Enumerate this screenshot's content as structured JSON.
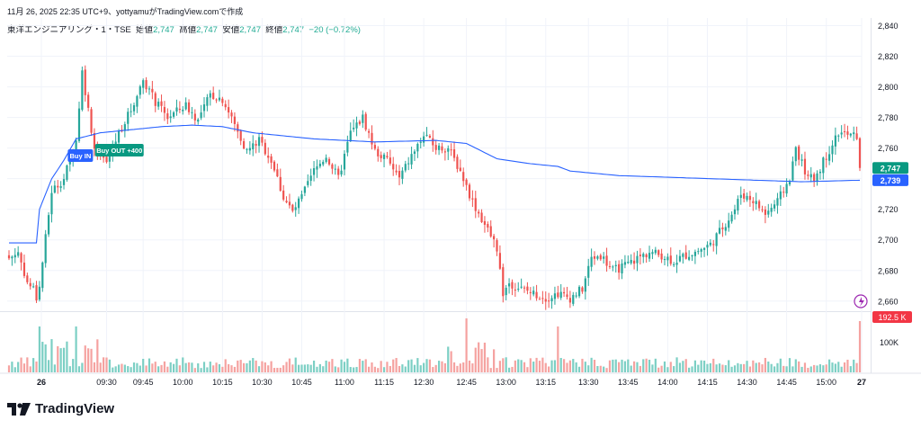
{
  "caption": "11月 26, 2025 22:35 UTC+9、yottyamuがTradingView.comで作成",
  "legend": {
    "symbol": "東洋エンジニアリング・1・TSE",
    "open_label": "始値",
    "open": "2,747",
    "high_label": "高値",
    "high": "2,747",
    "low_label": "安値",
    "low": "2,747",
    "close_label": "終値",
    "close": "2,747",
    "change": "−20 (−0.72%)"
  },
  "brand": "TradingView",
  "colors": {
    "up": "#26a69a",
    "down": "#ef5350",
    "vwap": "#2962ff",
    "up_vol": "#7ccfc4",
    "down_vol": "#f5a2a0"
  },
  "chart_data": {
    "type": "candlestick",
    "y_ticks": [
      "2,840",
      "2,820",
      "2,800",
      "2,780",
      "2,760",
      "2,740",
      "2,720",
      "2,700",
      "2,680",
      "2,660"
    ],
    "ylim": [
      2654,
      2845
    ],
    "x_ticks": [
      "26",
      "09:30",
      "09:45",
      "10:00",
      "10:15",
      "10:30",
      "10:45",
      "11:00",
      "11:15",
      "12:30",
      "12:45",
      "13:00",
      "13:15",
      "13:30",
      "13:45",
      "14:00",
      "14:15",
      "14:30",
      "14:45",
      "15:00",
      "27"
    ],
    "anchors": [
      [
        0,
        2688
      ],
      [
        3,
        2692
      ],
      [
        6,
        2672
      ],
      [
        8,
        2668
      ],
      [
        9,
        2662
      ],
      [
        10,
        2670
      ],
      [
        14,
        2732
      ],
      [
        18,
        2740
      ],
      [
        22,
        2765
      ],
      [
        24,
        2810
      ],
      [
        28,
        2760
      ],
      [
        32,
        2750
      ],
      [
        36,
        2770
      ],
      [
        40,
        2785
      ],
      [
        44,
        2805
      ],
      [
        48,
        2790
      ],
      [
        52,
        2780
      ],
      [
        58,
        2788
      ],
      [
        62,
        2778
      ],
      [
        66,
        2795
      ],
      [
        70,
        2792
      ],
      [
        74,
        2775
      ],
      [
        78,
        2758
      ],
      [
        82,
        2765
      ],
      [
        86,
        2752
      ],
      [
        90,
        2728
      ],
      [
        93,
        2718
      ],
      [
        96,
        2728
      ],
      [
        100,
        2745
      ],
      [
        104,
        2755
      ],
      [
        108,
        2740
      ],
      [
        112,
        2770
      ],
      [
        116,
        2780
      ],
      [
        120,
        2758
      ],
      [
        124,
        2752
      ],
      [
        128,
        2740
      ],
      [
        132,
        2755
      ],
      [
        136,
        2768
      ],
      [
        140,
        2760
      ],
      [
        144,
        2760
      ],
      [
        148,
        2745
      ],
      [
        152,
        2725
      ],
      [
        156,
        2710
      ],
      [
        160,
        2695
      ],
      [
        162,
        2665
      ],
      [
        164,
        2672
      ],
      [
        168,
        2668
      ],
      [
        172,
        2665
      ],
      [
        176,
        2662
      ],
      [
        180,
        2665
      ],
      [
        184,
        2662
      ],
      [
        188,
        2668
      ],
      [
        191,
        2688
      ],
      [
        194,
        2690
      ],
      [
        198,
        2680
      ],
      [
        202,
        2683
      ],
      [
        206,
        2688
      ],
      [
        210,
        2692
      ],
      [
        214,
        2690
      ],
      [
        218,
        2686
      ],
      [
        222,
        2690
      ],
      [
        226,
        2693
      ],
      [
        230,
        2697
      ],
      [
        234,
        2708
      ],
      [
        238,
        2720
      ],
      [
        240,
        2730
      ],
      [
        244,
        2726
      ],
      [
        248,
        2717
      ],
      [
        252,
        2725
      ],
      [
        256,
        2740
      ],
      [
        258,
        2760
      ],
      [
        262,
        2740
      ],
      [
        264,
        2740
      ],
      [
        268,
        2755
      ],
      [
        272,
        2770
      ],
      [
        276,
        2768
      ],
      [
        279,
        2768
      ]
    ],
    "vwap": [
      [
        0,
        2698
      ],
      [
        9,
        2698
      ],
      [
        10,
        2720
      ],
      [
        14,
        2740
      ],
      [
        18,
        2752
      ],
      [
        22,
        2766
      ],
      [
        30,
        2770
      ],
      [
        40,
        2772
      ],
      [
        50,
        2774
      ],
      [
        60,
        2775
      ],
      [
        70,
        2774
      ],
      [
        80,
        2770
      ],
      [
        100,
        2766
      ],
      [
        120,
        2764
      ],
      [
        140,
        2765
      ],
      [
        150,
        2763
      ],
      [
        155,
        2758
      ],
      [
        160,
        2753
      ],
      [
        170,
        2750
      ],
      [
        180,
        2748
      ],
      [
        184,
        2745
      ],
      [
        200,
        2742
      ],
      [
        230,
        2740
      ],
      [
        260,
        2738
      ],
      [
        279,
        2739
      ]
    ],
    "session_break_index": 144,
    "last_price": "2,747",
    "vwap_last": "2,739",
    "volume_last": "192.5 K",
    "volume_tick": "100K",
    "markers": [
      {
        "label": "Buy IN",
        "index": 24
      },
      {
        "label": "Buy OUT +400",
        "index": 30
      }
    ]
  }
}
